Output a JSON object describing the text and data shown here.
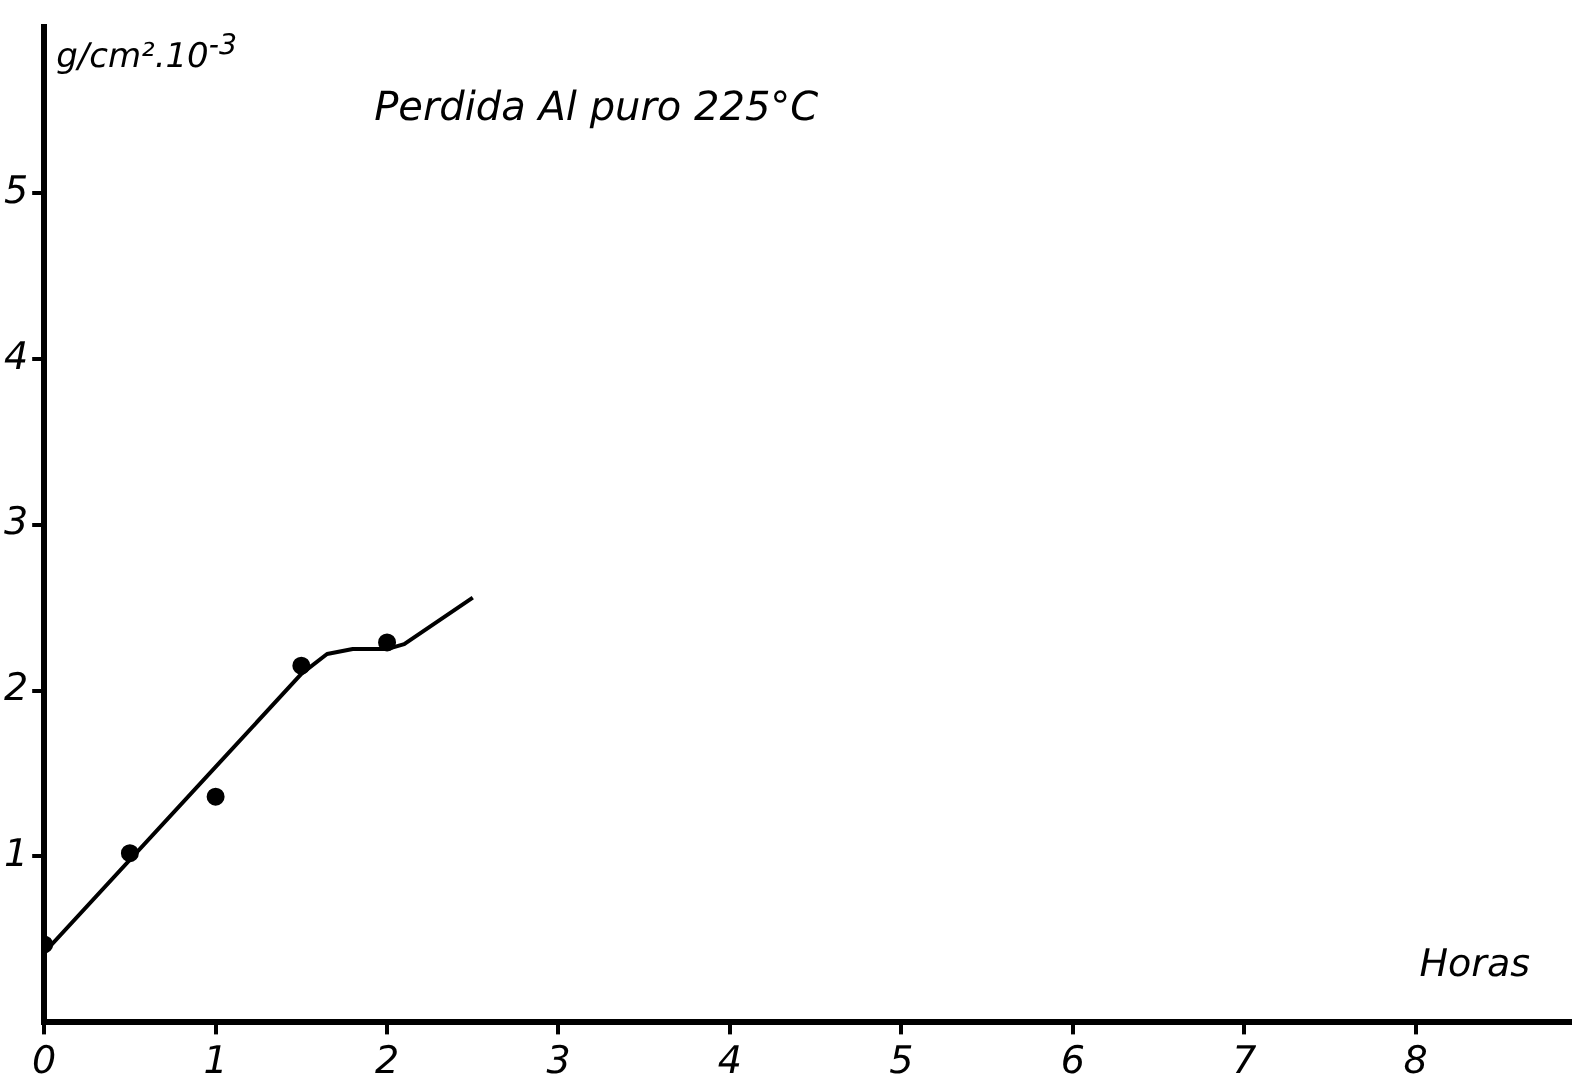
{
  "chart_data": {
    "type": "scatter",
    "title": "Perdida Al puro 225°C",
    "xlabel": "Horas",
    "ylabel": "g/cm².10$^{-3}$",
    "xlim": [
      0,
      8.9
    ],
    "xticks": [
      0,
      1,
      2,
      3,
      4,
      5,
      6,
      7,
      8
    ],
    "ylim": [
      0,
      6
    ],
    "yticks": [
      1,
      2,
      3,
      4,
      5
    ],
    "grid": false,
    "legend": false,
    "marker": "circle",
    "series": [
      {
        "color": "#000000",
        "x": [
          0,
          0.5,
          1,
          1.5,
          2
        ],
        "values": [
          0.47,
          1.02,
          1.36,
          2.15,
          2.29
        ]
      },
      {
        "type": "line",
        "color": "#000000",
        "line_style": "solid",
        "marker": "none",
        "x": [
          0,
          1.5,
          1.65,
          1.8,
          2.0,
          2.1,
          2.5
        ],
        "values": [
          0.42,
          2.1,
          2.22,
          2.25,
          2.25,
          2.28,
          2.56
        ]
      }
    ]
  }
}
